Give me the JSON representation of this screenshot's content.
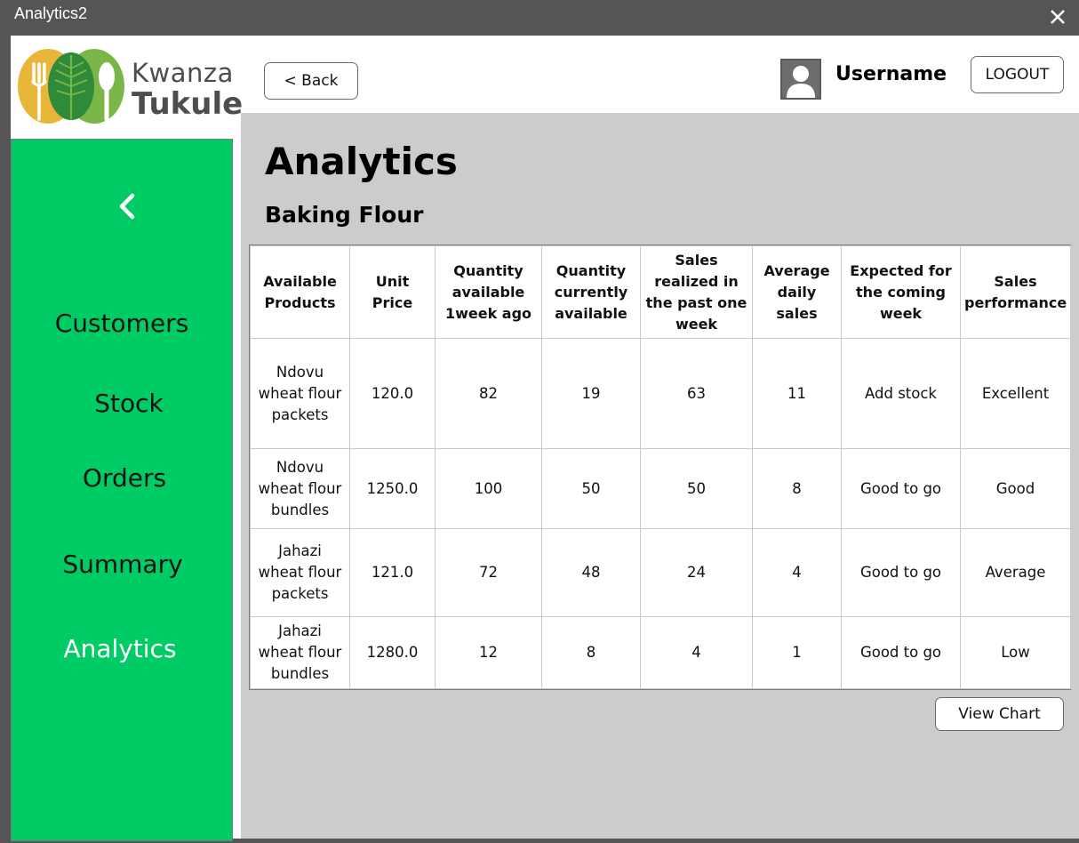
{
  "window": {
    "title": "Analytics2"
  },
  "brand": {
    "line1": "Kwanza",
    "line2": "Tukule"
  },
  "header": {
    "back_label": "< Back",
    "username": "Username",
    "logout_label": "LOGOUT"
  },
  "sidebar": {
    "items": [
      {
        "label": "Customers",
        "active": false
      },
      {
        "label": "Stock",
        "active": false
      },
      {
        "label": "Orders",
        "active": false
      },
      {
        "label": "Summary",
        "active": false
      },
      {
        "label": "Analytics",
        "active": true
      }
    ]
  },
  "main": {
    "title": "Analytics",
    "subtitle": "Baking Flour",
    "table": {
      "columns": [
        "Available Products",
        "Unit Price",
        "Quantity available 1week ago",
        "Quantity currently available",
        "Sales realized in the past one week",
        "Average daily sales",
        "Expected for the coming week",
        "Sales performance"
      ],
      "rows": [
        [
          "Ndovu wheat flour packets",
          "120.0",
          "82",
          "19",
          "63",
          "11",
          "Add stock",
          "Excellent"
        ],
        [
          "Ndovu wheat flour bundles",
          "1250.0",
          "100",
          "50",
          "50",
          "8",
          "Good to go",
          "Good"
        ],
        [
          "Jahazi wheat flour packets",
          "121.0",
          "72",
          "48",
          "24",
          "4",
          "Good to go",
          "Average"
        ],
        [
          "Jahazi wheat flour bundles",
          "1280.0",
          "12",
          "8",
          "4",
          "1",
          "Good to go",
          "Low"
        ]
      ]
    },
    "view_chart_label": "View Chart"
  },
  "colors": {
    "sidebar": "#00cc66",
    "content_bg": "#cccccc",
    "window_frame": "#555555",
    "brand_yellow": "#e8b73a",
    "brand_green": "#7ab648",
    "brand_dark_green": "#2f8a3a"
  },
  "icons": {
    "close": "close-icon",
    "sidebar_toggle": "chevron-left-icon",
    "avatar": "user-avatar-icon"
  }
}
